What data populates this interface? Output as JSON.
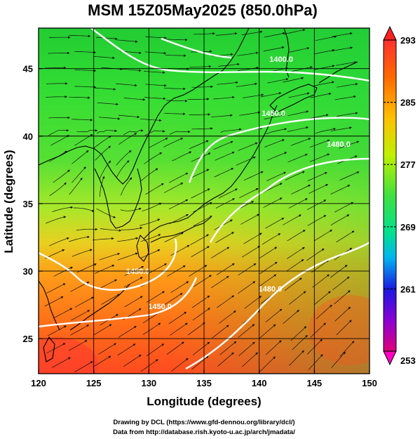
{
  "title": "MSM 15Z05May2025 (850.0hPa)",
  "x_axis": {
    "label": "Longitude (degrees)",
    "ticks": [
      "120",
      "125",
      "130",
      "135",
      "140",
      "145",
      "150"
    ],
    "range": [
      120,
      150
    ]
  },
  "y_axis": {
    "label": "Latitude  (degrees)",
    "ticks": [
      "25",
      "30",
      "35",
      "40",
      "45"
    ],
    "range": [
      22.4,
      48.0
    ]
  },
  "colorbar": {
    "ticks": [
      "293",
      "285",
      "277",
      "269",
      "261",
      "253"
    ],
    "range": [
      253,
      293
    ],
    "colors": [
      "#e0007a",
      "#8a00d4",
      "#1a1ae0",
      "#00b4f0",
      "#00e090",
      "#40e040",
      "#c0f000",
      "#ffc000",
      "#ff6a00",
      "#ff3030"
    ]
  },
  "contours": [
    {
      "label": "1400.0",
      "lon": 142.0,
      "lat": 45.5
    },
    {
      "label": "1450.0",
      "lon": 141.3,
      "lat": 41.5
    },
    {
      "label": "1480.0",
      "lon": 147.2,
      "lat": 39.2
    },
    {
      "label": "1450.0",
      "lon": 129.0,
      "lat": 29.8
    },
    {
      "label": "1450.0",
      "lon": 131.0,
      "lat": 27.2
    },
    {
      "label": "1480.0",
      "lon": 141.0,
      "lat": 28.5
    }
  ],
  "credits": {
    "line1": "Drawing by DCL (https://www.gfd-dennou.org/library/dcl/)",
    "line2": "Data from http://database.rish.kyoto-u.ac.jp/arch/jmadata/"
  }
}
